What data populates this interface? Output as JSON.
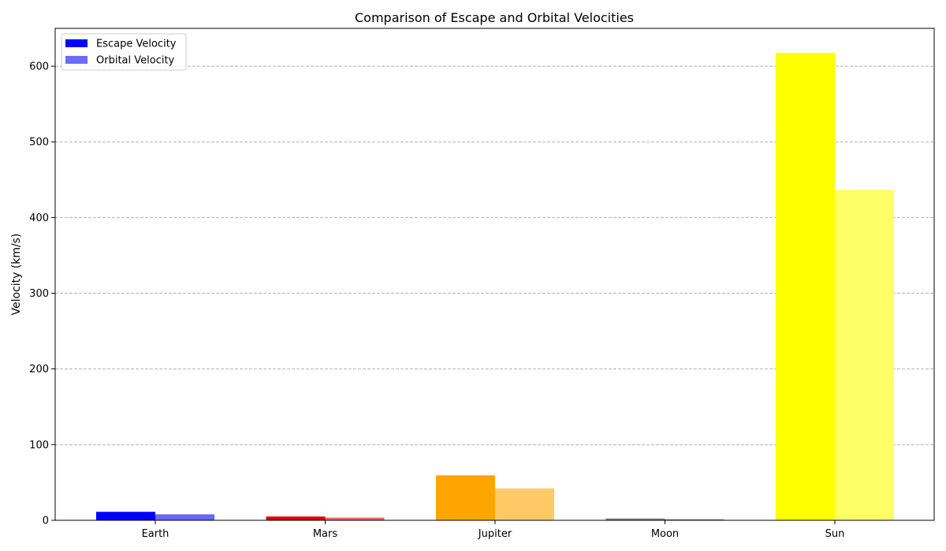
{
  "chart_data": {
    "type": "bar",
    "title": "Comparison of Escape and Orbital Velocities",
    "xlabel": "",
    "ylabel": "Velocity (km/s)",
    "categories": [
      "Earth",
      "Mars",
      "Jupiter",
      "Moon",
      "Sun"
    ],
    "ylim": [
      0,
      650
    ],
    "yticks": [
      0,
      100,
      200,
      300,
      400,
      500,
      600
    ],
    "grid": "y-dashed",
    "legend_position": "top-left",
    "series": [
      {
        "name": "Escape Velocity",
        "values": [
          11.2,
          5.0,
          59.5,
          2.4,
          617.5
        ],
        "colors": [
          "#0000ff",
          "#e60000",
          "#ffa500",
          "#808080",
          "#ffff00"
        ],
        "legend_color": "#0000ff"
      },
      {
        "name": "Orbital Velocity",
        "values": [
          7.9,
          3.6,
          42.1,
          1.7,
          436.7
        ],
        "colors": [
          "#6666ff",
          "#f06666",
          "#ffc966",
          "#a6a6a6",
          "#ffff66"
        ],
        "legend_color": "#6b6bff"
      }
    ]
  }
}
